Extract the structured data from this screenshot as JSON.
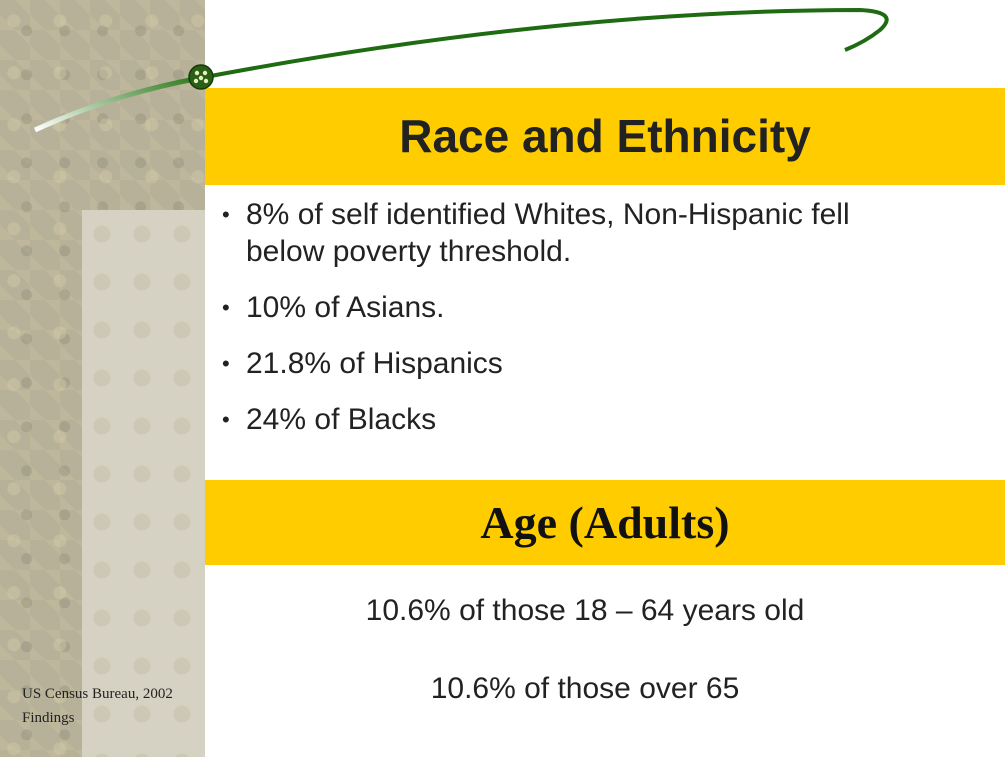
{
  "title": "Race and Ethnicity",
  "bullets": [
    "8% of self identified Whites, Non-Hispanic fell below poverty threshold.",
    "10% of Asians.",
    "21.8% of Hispanics",
    "24% of Blacks"
  ],
  "section_title": "Age (Adults)",
  "lines": [
    "10.6% of those 18 – 64 years old",
    "10.6% of those over 65"
  ],
  "footnote": "US Census Bureau, 2002 Findings"
}
